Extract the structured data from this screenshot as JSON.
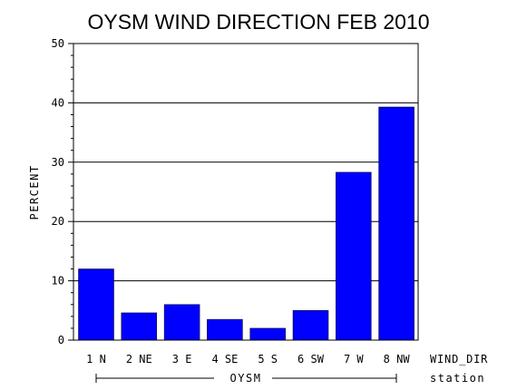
{
  "chart_data": {
    "type": "bar",
    "title": "OYSM WIND DIRECTION FEB 2010",
    "ylabel": "PERCENT",
    "xlabel": "WIND_DIR",
    "group_label": "OYSM",
    "group_axis_label": "station",
    "categories": [
      "1 N",
      "2 NE",
      "3 E",
      "4 SE",
      "5 S",
      "6 SW",
      "7 W",
      "8 NW"
    ],
    "values": [
      12.0,
      4.6,
      6.0,
      3.5,
      2.0,
      5.0,
      28.3,
      39.3
    ],
    "ylim": [
      0,
      50
    ],
    "yticks": [
      "0",
      "10",
      "20",
      "30",
      "40",
      "50"
    ],
    "grid": true,
    "bar_color": "#0000ff"
  }
}
